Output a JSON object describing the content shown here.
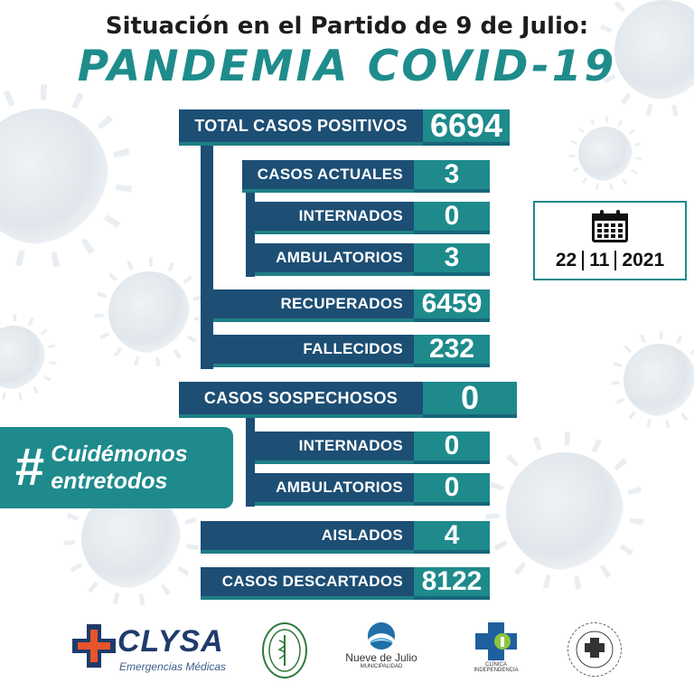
{
  "header": {
    "heading": "Situación en el Partido de 9 de Julio:",
    "title": "PANDEMIA COVID-19"
  },
  "stats": {
    "total": {
      "label": "TOTAL CASOS POSITIVOS",
      "value": "6694"
    },
    "actuales": {
      "label": "CASOS ACTUALES",
      "value": "3"
    },
    "internados": {
      "label": "INTERNADOS",
      "value": "0"
    },
    "ambulatorios": {
      "label": "AMBULATORIOS",
      "value": "3"
    },
    "recuperados": {
      "label": "RECUPERADOS",
      "value": "6459"
    },
    "fallecidos": {
      "label": "FALLECIDOS",
      "value": "232"
    },
    "sospechosos": {
      "label": "CASOS SOSPECHOSOS",
      "value": "0"
    },
    "sosp_internados": {
      "label": "INTERNADOS",
      "value": "0"
    },
    "sosp_ambulatorios": {
      "label": "AMBULATORIOS",
      "value": "0"
    },
    "aislados": {
      "label": "AISLADOS",
      "value": "4"
    },
    "descartados": {
      "label": "CASOS DESCARTADOS",
      "value": "8122"
    }
  },
  "date": {
    "day": "22",
    "month": "11",
    "year": "2021",
    "icon": "calendar-icon"
  },
  "hashtag": {
    "symbol": "#",
    "line1": "Cuidémonos",
    "line2": "entretodos"
  },
  "logos": {
    "clysa": {
      "name": "CLYSA",
      "sub": "Emergencias Médicas"
    },
    "nueve_de_julio": {
      "name": "Nueve de Julio",
      "sub": "MUNICIPALIDAD"
    },
    "clinica": {
      "name": "CLÍNICA INDEPENDENCIA"
    }
  },
  "colors": {
    "navy": "#1d4e74",
    "teal": "#1e8a8c",
    "title_teal": "#1f8c8c"
  }
}
